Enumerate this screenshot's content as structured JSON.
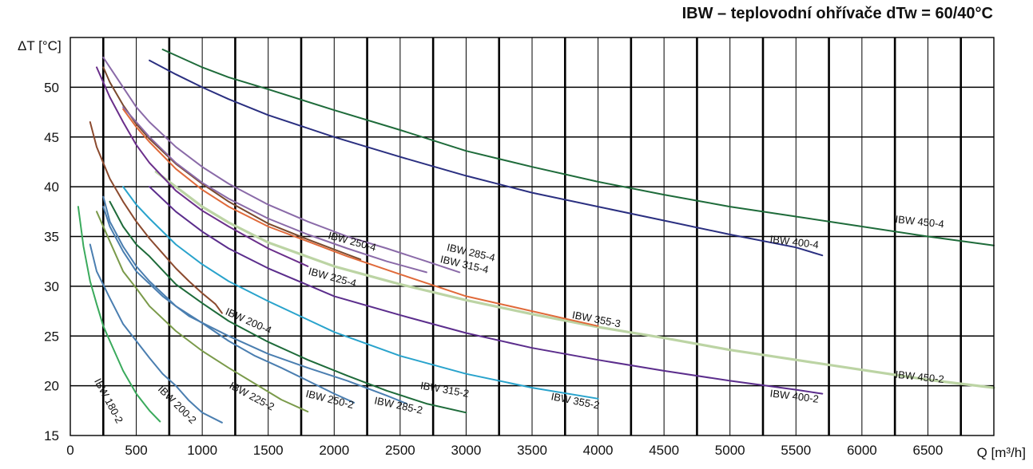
{
  "chart_data": {
    "type": "line",
    "title": "IBW – teplovodní ohřívače dTw = 60/40°C",
    "xlabel": "Q [m³/h]",
    "ylabel": "ΔT [°C]",
    "xlim": [
      0,
      7000
    ],
    "ylim": [
      15,
      55
    ],
    "xticks": [
      "0",
      "500",
      "1000",
      "1500",
      "2000",
      "2500",
      "3000",
      "3500",
      "4000",
      "4500",
      "5000",
      "5500",
      "6000",
      "6500"
    ],
    "yticks": [
      "15",
      "20",
      "25",
      "30",
      "35",
      "40",
      "45",
      "50"
    ],
    "grid": true,
    "legend": "none",
    "series": [
      {
        "name": "IBW 180-2",
        "color": "#3aaa5c",
        "points": [
          [
            60,
            38
          ],
          [
            100,
            34
          ],
          [
            150,
            30.5
          ],
          [
            200,
            28.2
          ],
          [
            250,
            26
          ],
          [
            300,
            24.5
          ],
          [
            400,
            21.5
          ],
          [
            500,
            19.2
          ],
          [
            600,
            17.5
          ],
          [
            680,
            16.4
          ]
        ]
      },
      {
        "name": "IBW 200-2",
        "color": "#4a7eb0",
        "points": [
          [
            150,
            34.2
          ],
          [
            200,
            31.5
          ],
          [
            300,
            28.8
          ],
          [
            400,
            26.2
          ],
          [
            500,
            24.5
          ],
          [
            600,
            22.8
          ],
          [
            700,
            21.2
          ],
          [
            800,
            20
          ],
          [
            900,
            18.5
          ],
          [
            1000,
            17.3
          ],
          [
            1150,
            16.3
          ]
        ]
      },
      {
        "name": "IBW 225-2",
        "color": "#7a9a4a",
        "points": [
          [
            200,
            37.5
          ],
          [
            300,
            34.5
          ],
          [
            400,
            31.5
          ],
          [
            500,
            29.8
          ],
          [
            600,
            28
          ],
          [
            800,
            25.5
          ],
          [
            1000,
            23.5
          ],
          [
            1200,
            21.8
          ],
          [
            1400,
            20.2
          ],
          [
            1600,
            18.6
          ],
          [
            1800,
            17.4
          ]
        ]
      },
      {
        "name": "IBW 250-2",
        "color": "#4a7eb0",
        "points": [
          [
            250,
            39
          ],
          [
            300,
            36.5
          ],
          [
            400,
            34
          ],
          [
            500,
            32
          ],
          [
            600,
            30.5
          ],
          [
            800,
            28
          ],
          [
            1000,
            26.3
          ],
          [
            1200,
            24.5
          ],
          [
            1400,
            23
          ],
          [
            1600,
            21.8
          ],
          [
            1800,
            20.5
          ],
          [
            2000,
            19.2
          ],
          [
            2150,
            18.3
          ]
        ]
      },
      {
        "name": "IBW 285-2",
        "color": "#4a7eb0",
        "points": [
          [
            250,
            38
          ],
          [
            300,
            36
          ],
          [
            400,
            33.5
          ],
          [
            500,
            31.5
          ],
          [
            700,
            29
          ],
          [
            900,
            27
          ],
          [
            1200,
            25
          ],
          [
            1500,
            23.2
          ],
          [
            1800,
            21.8
          ],
          [
            2100,
            20.5
          ],
          [
            2400,
            19
          ],
          [
            2550,
            18.2
          ]
        ]
      },
      {
        "name": "IBW 315-2",
        "color": "#1e6b3a",
        "points": [
          [
            300,
            38.5
          ],
          [
            400,
            36
          ],
          [
            500,
            34.2
          ],
          [
            600,
            33
          ],
          [
            800,
            30.2
          ],
          [
            1000,
            28.3
          ],
          [
            1200,
            26.5
          ],
          [
            1500,
            24.4
          ],
          [
            1800,
            22.6
          ],
          [
            2100,
            21
          ],
          [
            2400,
            19.5
          ],
          [
            2700,
            18.2
          ],
          [
            3000,
            17.3
          ]
        ]
      },
      {
        "name": "IBW 355-2",
        "color": "#29a3cc",
        "points": [
          [
            400,
            40
          ],
          [
            500,
            38.2
          ],
          [
            600,
            36.8
          ],
          [
            800,
            34.2
          ],
          [
            1000,
            32.2
          ],
          [
            1200,
            30.5
          ],
          [
            1500,
            28.5
          ],
          [
            2000,
            25.4
          ],
          [
            2500,
            23
          ],
          [
            3000,
            21.2
          ],
          [
            3500,
            19.8
          ],
          [
            4000,
            18.7
          ]
        ]
      },
      {
        "name": "IBW 400-2",
        "color": "#5b2d8c",
        "points": [
          [
            600,
            40
          ],
          [
            800,
            37.5
          ],
          [
            1000,
            35.5
          ],
          [
            1200,
            33.8
          ],
          [
            1500,
            31.8
          ],
          [
            2000,
            29
          ],
          [
            2500,
            27.1
          ],
          [
            3000,
            25.3
          ],
          [
            3500,
            23.8
          ],
          [
            4000,
            22.6
          ],
          [
            4500,
            21.5
          ],
          [
            5000,
            20.5
          ],
          [
            5500,
            19.6
          ],
          [
            5700,
            19.2
          ]
        ]
      },
      {
        "name": "IBW 450-2",
        "color": "#bcd4a4",
        "points": [
          [
            650,
            41.5
          ],
          [
            800,
            40
          ],
          [
            1000,
            38
          ],
          [
            1200,
            36.4
          ],
          [
            1500,
            34.4
          ],
          [
            2000,
            32
          ],
          [
            2500,
            30.2
          ],
          [
            3000,
            28.6
          ],
          [
            3500,
            27.2
          ],
          [
            4000,
            25.9
          ],
          [
            4500,
            24.8
          ],
          [
            5000,
            23.6
          ],
          [
            5500,
            22.6
          ],
          [
            6000,
            21.6
          ],
          [
            6500,
            20.6
          ],
          [
            7000,
            19.8
          ]
        ]
      },
      {
        "name": "IBW 200-4",
        "color": "#8b4a2e",
        "points": [
          [
            150,
            46.5
          ],
          [
            200,
            44
          ],
          [
            300,
            40.8
          ],
          [
            400,
            38.5
          ],
          [
            500,
            36.5
          ],
          [
            600,
            34.8
          ],
          [
            700,
            33.3
          ],
          [
            800,
            31.8
          ],
          [
            900,
            30.5
          ],
          [
            1000,
            29.3
          ],
          [
            1100,
            28.2
          ],
          [
            1150,
            27.3
          ]
        ]
      },
      {
        "name": "IBW 225-4",
        "color": "#6a2e8a",
        "points": [
          [
            200,
            52
          ],
          [
            300,
            49
          ],
          [
            400,
            46.5
          ],
          [
            500,
            44.2
          ],
          [
            600,
            42.4
          ],
          [
            800,
            39.6
          ],
          [
            1000,
            37.6
          ],
          [
            1200,
            36
          ],
          [
            1500,
            33.8
          ],
          [
            1800,
            32
          ]
        ]
      },
      {
        "name": "IBW 250-4",
        "color": "#7a4a2e",
        "points": [
          [
            250,
            52
          ],
          [
            300,
            50.5
          ],
          [
            400,
            48.2
          ],
          [
            500,
            46.3
          ],
          [
            600,
            44.8
          ],
          [
            800,
            42.3
          ],
          [
            1000,
            40.3
          ],
          [
            1200,
            38.5
          ],
          [
            1500,
            36.3
          ],
          [
            1800,
            34.7
          ],
          [
            2100,
            33.2
          ],
          [
            2200,
            32.7
          ]
        ]
      },
      {
        "name": "IBW 285-4",
        "color": "#8a6aa8",
        "points": [
          [
            250,
            53
          ],
          [
            300,
            52
          ],
          [
            400,
            50
          ],
          [
            500,
            48
          ],
          [
            600,
            46.5
          ],
          [
            800,
            44
          ],
          [
            1000,
            42
          ],
          [
            1200,
            40.3
          ],
          [
            1500,
            38.2
          ],
          [
            1800,
            36.5
          ],
          [
            2100,
            35
          ],
          [
            2400,
            33.8
          ],
          [
            2700,
            32.5
          ],
          [
            2950,
            31.4
          ]
        ]
      },
      {
        "name": "IBW 315-4",
        "color": "#8a6aa8",
        "points": [
          [
            400,
            48
          ],
          [
            500,
            46.5
          ],
          [
            600,
            45
          ],
          [
            800,
            42.4
          ],
          [
            1000,
            40.4
          ],
          [
            1200,
            38.8
          ],
          [
            1500,
            36.8
          ],
          [
            1800,
            35.2
          ],
          [
            2100,
            33.8
          ],
          [
            2400,
            32.5
          ],
          [
            2700,
            31.4
          ]
        ]
      },
      {
        "name": "IBW 355-3",
        "color": "#e06a3a",
        "points": [
          [
            400,
            47.8
          ],
          [
            500,
            46
          ],
          [
            600,
            44.5
          ],
          [
            800,
            41.8
          ],
          [
            1000,
            39.7
          ],
          [
            1200,
            38
          ],
          [
            1500,
            36
          ],
          [
            1800,
            34.5
          ],
          [
            2100,
            33
          ],
          [
            2500,
            31.2
          ],
          [
            3000,
            29
          ],
          [
            3500,
            27.5
          ],
          [
            4000,
            26
          ]
        ]
      },
      {
        "name": "IBW 400-4",
        "color": "#2a2f80",
        "points": [
          [
            600,
            52.7
          ],
          [
            800,
            51.3
          ],
          [
            1000,
            50
          ],
          [
            1200,
            48.8
          ],
          [
            1500,
            47.2
          ],
          [
            2000,
            45
          ],
          [
            2500,
            43
          ],
          [
            3000,
            41.1
          ],
          [
            3500,
            39.4
          ],
          [
            4000,
            38
          ],
          [
            4500,
            36.6
          ],
          [
            5000,
            35.2
          ],
          [
            5500,
            33.9
          ],
          [
            5700,
            33.1
          ]
        ]
      },
      {
        "name": "IBW 450-4",
        "color": "#1e6b3a",
        "points": [
          [
            700,
            53.8
          ],
          [
            1000,
            52
          ],
          [
            1200,
            51
          ],
          [
            1500,
            49.8
          ],
          [
            2000,
            47.7
          ],
          [
            2500,
            45.7
          ],
          [
            3000,
            43.6
          ],
          [
            3500,
            42
          ],
          [
            4000,
            40.5
          ],
          [
            4500,
            39.2
          ],
          [
            5000,
            38
          ],
          [
            5500,
            37
          ],
          [
            6000,
            36
          ],
          [
            6500,
            35
          ],
          [
            7000,
            34.1
          ]
        ]
      }
    ],
    "annotations": [
      {
        "text": "IBW 180-2",
        "x": 180,
        "y": 20.5,
        "angle": 62
      },
      {
        "text": "IBW 200-2",
        "x": 660,
        "y": 19.6,
        "angle": 45
      },
      {
        "text": "IBW 225-2",
        "x": 1200,
        "y": 19.8,
        "angle": 28
      },
      {
        "text": "IBW 250-2",
        "x": 1780,
        "y": 18.9,
        "angle": 14
      },
      {
        "text": "IBW 285-2",
        "x": 2300,
        "y": 18.2,
        "angle": 12
      },
      {
        "text": "IBW 315-2",
        "x": 2650,
        "y": 19.7,
        "angle": 10
      },
      {
        "text": "IBW 355-2",
        "x": 3640,
        "y": 18.6,
        "angle": 11
      },
      {
        "text": "IBW 400-2",
        "x": 5300,
        "y": 18.9,
        "angle": 7
      },
      {
        "text": "IBW 450-2",
        "x": 6250,
        "y": 20.8,
        "angle": 6
      },
      {
        "text": "IBW 200-4",
        "x": 1170,
        "y": 27.2,
        "angle": 24
      },
      {
        "text": "IBW 225-4",
        "x": 1800,
        "y": 31.2,
        "angle": 15
      },
      {
        "text": "IBW 250-4",
        "x": 1950,
        "y": 34.8,
        "angle": 15
      },
      {
        "text": "IBW 285-4",
        "x": 2850,
        "y": 33.6,
        "angle": 13
      },
      {
        "text": "IBW 315-4",
        "x": 2800,
        "y": 32.4,
        "angle": 13
      },
      {
        "text": "IBW 355-3",
        "x": 3800,
        "y": 26.8,
        "angle": 11
      },
      {
        "text": "IBW 400-4",
        "x": 5300,
        "y": 34.4,
        "angle": 7
      },
      {
        "text": "IBW 450-4",
        "x": 6250,
        "y": 36.4,
        "angle": 6
      }
    ]
  }
}
